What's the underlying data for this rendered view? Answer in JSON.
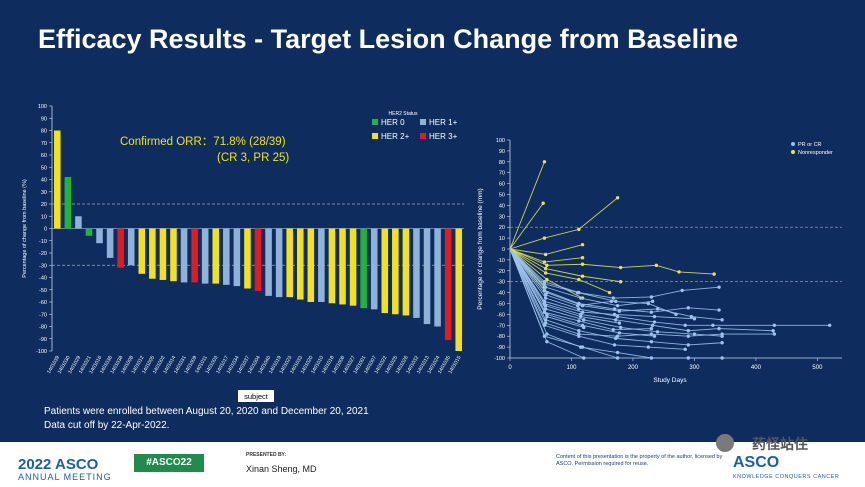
{
  "slide": {
    "title": "Efficacy Results - Target Lesion Change from Baseline",
    "note_line1": "Patients were enrolled between August 20, 2020 and December 20, 2021",
    "note_line2": "Data cut off by 22-Apr-2022."
  },
  "footer": {
    "year": "2022 ASCO",
    "meeting": "ANNUAL MEETING",
    "hashtag": "#ASCO22",
    "presented_by": "PRESENTED BY:",
    "presenter": "Xinan Sheng, MD",
    "content_note": "Content of this presentation is the property of the author, licensed by ASCO. Permission required for reuse.",
    "asco_logo": "ASCO",
    "asco_tagline": "KNOWLEDGE CONQUERS CANCER",
    "watermark": "药怪站住"
  },
  "colors": {
    "her0": "#22b33a",
    "her1": "#8fb2d9",
    "her2": "#f3e21a",
    "her3": "#e01b22",
    "pr": "#9dc3ec",
    "nonresponder": "#e6e64a"
  },
  "chart_data": [
    {
      "type": "bar",
      "ylabel": "Percentage of change from baseline (%)",
      "xlabel": "subject",
      "ylim": [
        -100,
        100
      ],
      "yticks": [
        100,
        90,
        80,
        70,
        60,
        50,
        40,
        30,
        20,
        10,
        0,
        -10,
        -20,
        -30,
        -40,
        -50,
        -60,
        -70,
        -80,
        -90,
        -100
      ],
      "reference_lines": [
        20,
        -30
      ],
      "annotation_line1": "Confirmed ORR：71.8% (28/39)",
      "annotation_line2": "(CR  3, PR 25)",
      "legend_title": "HER2 Status",
      "legend": [
        {
          "label": "HER 0",
          "key": "her0"
        },
        {
          "label": "HER 1+",
          "key": "her1"
        },
        {
          "label": "HER 2+",
          "key": "her2"
        },
        {
          "label": "HER 3+",
          "key": "her3"
        }
      ],
      "bars": [
        {
          "subject": "1401039",
          "value": 80,
          "her2": "her2"
        },
        {
          "subject": "1401030",
          "value": 42,
          "her2": "her0"
        },
        {
          "subject": "1401029",
          "value": 10,
          "her2": "her1"
        },
        {
          "subject": "1401021",
          "value": -6,
          "her2": "her0"
        },
        {
          "subject": "1401016",
          "value": -12,
          "her2": "her1"
        },
        {
          "subject": "1401036",
          "value": -24,
          "her2": "her1"
        },
        {
          "subject": "1401038",
          "value": -32,
          "her2": "her3"
        },
        {
          "subject": "1401008",
          "value": -30,
          "her2": "her1"
        },
        {
          "subject": "1401012",
          "value": -37,
          "her2": "her2"
        },
        {
          "subject": "1401005",
          "value": -41,
          "her2": "her2"
        },
        {
          "subject": "1401002",
          "value": -42,
          "her2": "her2"
        },
        {
          "subject": "1401014",
          "value": -43,
          "her2": "her2"
        },
        {
          "subject": "1401031",
          "value": -44,
          "her2": "her1"
        },
        {
          "subject": "1401009",
          "value": -44,
          "her2": "her3"
        },
        {
          "subject": "1401011",
          "value": -45,
          "her2": "her1"
        },
        {
          "subject": "1401003",
          "value": -45,
          "her2": "her2"
        },
        {
          "subject": "1401017",
          "value": -46,
          "her2": "her1"
        },
        {
          "subject": "1401034",
          "value": -47,
          "her2": "her1"
        },
        {
          "subject": "1401037",
          "value": -49,
          "her2": "her2"
        },
        {
          "subject": "1401004",
          "value": -51,
          "her2": "her3"
        },
        {
          "subject": "1401040",
          "value": -55,
          "her2": "her1"
        },
        {
          "subject": "1401019",
          "value": -56,
          "her2": "her1"
        },
        {
          "subject": "1401023",
          "value": -56,
          "her2": "her2"
        },
        {
          "subject": "1401033",
          "value": -58,
          "her2": "her2"
        },
        {
          "subject": "1401020",
          "value": -60,
          "her2": "her2"
        },
        {
          "subject": "1401010",
          "value": -60,
          "her2": "her1"
        },
        {
          "subject": "1401018",
          "value": -61,
          "her2": "her2"
        },
        {
          "subject": "1401006",
          "value": -62,
          "her2": "her2"
        },
        {
          "subject": "1401027",
          "value": -63,
          "her2": "her2"
        },
        {
          "subject": "1401001",
          "value": -65,
          "her2": "her0"
        },
        {
          "subject": "1401007",
          "value": -66,
          "her2": "her1"
        },
        {
          "subject": "1401022",
          "value": -69,
          "her2": "her2"
        },
        {
          "subject": "1401025",
          "value": -70,
          "her2": "her2"
        },
        {
          "subject": "1401026",
          "value": -71,
          "her2": "her2"
        },
        {
          "subject": "1401032",
          "value": -73,
          "her2": "her1"
        },
        {
          "subject": "1401013",
          "value": -78,
          "her2": "her1"
        },
        {
          "subject": "1401024",
          "value": -80,
          "her2": "her1"
        },
        {
          "subject": "1401035",
          "value": -91,
          "her2": "her3"
        },
        {
          "subject": "1401015",
          "value": -100,
          "her2": "her2"
        }
      ]
    },
    {
      "type": "line",
      "xlabel": "Study Days",
      "ylabel": "Percentage of change from baseline (mm)",
      "xlim": [
        0,
        540
      ],
      "ylim": [
        -100,
        100
      ],
      "xticks": [
        0,
        100,
        200,
        300,
        400,
        500
      ],
      "yticks": [
        100,
        90,
        80,
        70,
        60,
        50,
        40,
        30,
        20,
        10,
        0,
        -10,
        -20,
        -30,
        -40,
        -50,
        -60,
        -70,
        -80,
        -90,
        -100
      ],
      "reference_lines": [
        20,
        -30
      ],
      "legend": [
        {
          "label": "PR or CR",
          "key": "pr"
        },
        {
          "label": "Nonresponder",
          "key": "nonresponder"
        }
      ],
      "series": [
        {
          "group": "nonresponder",
          "points": [
            [
              0,
              0
            ],
            [
              56,
              80
            ]
          ]
        },
        {
          "group": "nonresponder",
          "points": [
            [
              0,
              0
            ],
            [
              54,
              42
            ]
          ]
        },
        {
          "group": "nonresponder",
          "points": [
            [
              0,
              0
            ],
            [
              56,
              10
            ],
            [
              112,
              18
            ],
            [
              175,
              47
            ]
          ]
        },
        {
          "group": "nonresponder",
          "points": [
            [
              0,
              0
            ],
            [
              58,
              -5
            ],
            [
              118,
              4
            ]
          ]
        },
        {
          "group": "nonresponder",
          "points": [
            [
              0,
              0
            ],
            [
              56,
              -12
            ],
            [
              118,
              -8
            ]
          ]
        },
        {
          "group": "nonresponder",
          "points": [
            [
              0,
              0
            ],
            [
              60,
              -15
            ],
            [
              118,
              -14
            ],
            [
              180,
              -17
            ],
            [
              238,
              -15
            ],
            [
              275,
              -21
            ],
            [
              332,
              -23
            ]
          ]
        },
        {
          "group": "nonresponder",
          "points": [
            [
              0,
              0
            ],
            [
              58,
              -18
            ],
            [
              118,
              -25
            ],
            [
              180,
              -30
            ]
          ]
        },
        {
          "group": "nonresponder",
          "points": [
            [
              0,
              0
            ],
            [
              58,
              -22
            ],
            [
              112,
              -28
            ],
            [
              162,
              -40
            ]
          ]
        },
        {
          "group": "nonresponder",
          "points": [
            [
              0,
              0
            ],
            [
              60,
              -28
            ],
            [
              118,
              -45
            ]
          ]
        },
        {
          "group": "nonresponder",
          "points": [
            [
              0,
              0
            ],
            [
              56,
              -35
            ]
          ]
        },
        {
          "group": "pr",
          "points": [
            [
              0,
              0
            ],
            [
              56,
              -30
            ],
            [
              112,
              -40
            ],
            [
              168,
              -45
            ],
            [
              230,
              -44
            ],
            [
              280,
              -38
            ],
            [
              340,
              -35
            ]
          ]
        },
        {
          "group": "pr",
          "points": [
            [
              0,
              0
            ],
            [
              56,
              -38
            ],
            [
              112,
              -50
            ],
            [
              170,
              -55
            ],
            [
              230,
              -58
            ],
            [
              290,
              -54
            ],
            [
              340,
              -56
            ]
          ]
        },
        {
          "group": "pr",
          "points": [
            [
              0,
              0
            ],
            [
              58,
              -45
            ],
            [
              112,
              -55
            ],
            [
              175,
              -62
            ],
            [
              235,
              -67
            ],
            [
              285,
              -70
            ],
            [
              330,
              -70
            ],
            [
              430,
              -70
            ],
            [
              520,
              -70
            ]
          ]
        },
        {
          "group": "pr",
          "points": [
            [
              0,
              0
            ],
            [
              56,
              -50
            ],
            [
              115,
              -60
            ],
            [
              172,
              -65
            ],
            [
              232,
              -70
            ],
            [
              290,
              -75
            ],
            [
              340,
              -73
            ],
            [
              428,
              -75
            ]
          ]
        },
        {
          "group": "pr",
          "points": [
            [
              0,
              0
            ],
            [
              58,
              -55
            ],
            [
              120,
              -65
            ],
            [
              180,
              -72
            ],
            [
              240,
              -76
            ],
            [
              300,
              -78
            ],
            [
              345,
              -80
            ]
          ]
        },
        {
          "group": "pr",
          "points": [
            [
              0,
              0
            ],
            [
              60,
              -60
            ],
            [
              118,
              -70
            ],
            [
              178,
              -77
            ],
            [
              235,
              -80
            ]
          ]
        },
        {
          "group": "pr",
          "points": [
            [
              0,
              0
            ],
            [
              58,
              -65
            ],
            [
              112,
              -75
            ],
            [
              172,
              -82
            ],
            [
              230,
              -85
            ],
            [
              290,
              -88
            ],
            [
              345,
              -86
            ]
          ]
        },
        {
          "group": "pr",
          "points": [
            [
              0,
              0
            ],
            [
              56,
              -70
            ],
            [
              112,
              -80
            ],
            [
              170,
              -88
            ],
            [
              225,
              -90
            ],
            [
              285,
              -92
            ]
          ]
        },
        {
          "group": "pr",
          "points": [
            [
              0,
              0
            ],
            [
              60,
              -78
            ],
            [
              115,
              -90
            ],
            [
              175,
              -95
            ],
            [
              230,
              -100
            ],
            [
              290,
              -100
            ],
            [
              345,
              -100
            ]
          ]
        },
        {
          "group": "pr",
          "points": [
            [
              0,
              0
            ],
            [
              56,
              -80
            ],
            [
              118,
              -90
            ],
            [
              175,
              -100
            ]
          ]
        },
        {
          "group": "pr",
          "points": [
            [
              0,
              0
            ],
            [
              60,
              -85
            ],
            [
              120,
              -100
            ]
          ]
        },
        {
          "group": "pr",
          "points": [
            [
              0,
              0
            ],
            [
              58,
              -42
            ],
            [
              110,
              -52
            ],
            [
              165,
              -48
            ],
            [
              225,
              -50
            ],
            [
              270,
              -60
            ]
          ]
        },
        {
          "group": "pr",
          "points": [
            [
              0,
              0
            ],
            [
              56,
              -48
            ],
            [
              118,
              -58
            ],
            [
              170,
              -60
            ],
            [
              235,
              -62
            ],
            [
              300,
              -64
            ]
          ]
        },
        {
          "group": "pr",
          "points": [
            [
              0,
              0
            ],
            [
              58,
              -52
            ],
            [
              115,
              -62
            ],
            [
              178,
              -68
            ]
          ]
        },
        {
          "group": "pr",
          "points": [
            [
              0,
              0
            ],
            [
              56,
              -58
            ],
            [
              112,
              -66
            ],
            [
              168,
              -74
            ],
            [
              230,
              -73
            ]
          ]
        },
        {
          "group": "pr",
          "points": [
            [
              0,
              0
            ],
            [
              60,
              -62
            ],
            [
              120,
              -72
            ]
          ]
        },
        {
          "group": "pr",
          "points": [
            [
              0,
              0
            ],
            [
              58,
              -68
            ],
            [
              112,
              -78
            ],
            [
              175,
              -80
            ],
            [
              230,
              -78
            ],
            [
              290,
              -80
            ],
            [
              345,
              -78
            ],
            [
              430,
              -78
            ]
          ]
        },
        {
          "group": "pr",
          "points": [
            [
              0,
              0
            ],
            [
              56,
              -32
            ],
            [
              110,
              -40
            ],
            [
              172,
              -48
            ]
          ]
        },
        {
          "group": "pr",
          "points": [
            [
              0,
              0
            ],
            [
              60,
              -40
            ],
            [
              118,
              -52
            ],
            [
              178,
              -57
            ],
            [
              240,
              -55
            ],
            [
              295,
              -62
            ],
            [
              345,
              -65
            ]
          ]
        },
        {
          "group": "pr",
          "points": [
            [
              0,
              0
            ],
            [
              58,
              -35
            ],
            [
              115,
              -45
            ],
            [
              175,
              -52
            ],
            [
              232,
              -48
            ]
          ]
        }
      ]
    }
  ]
}
